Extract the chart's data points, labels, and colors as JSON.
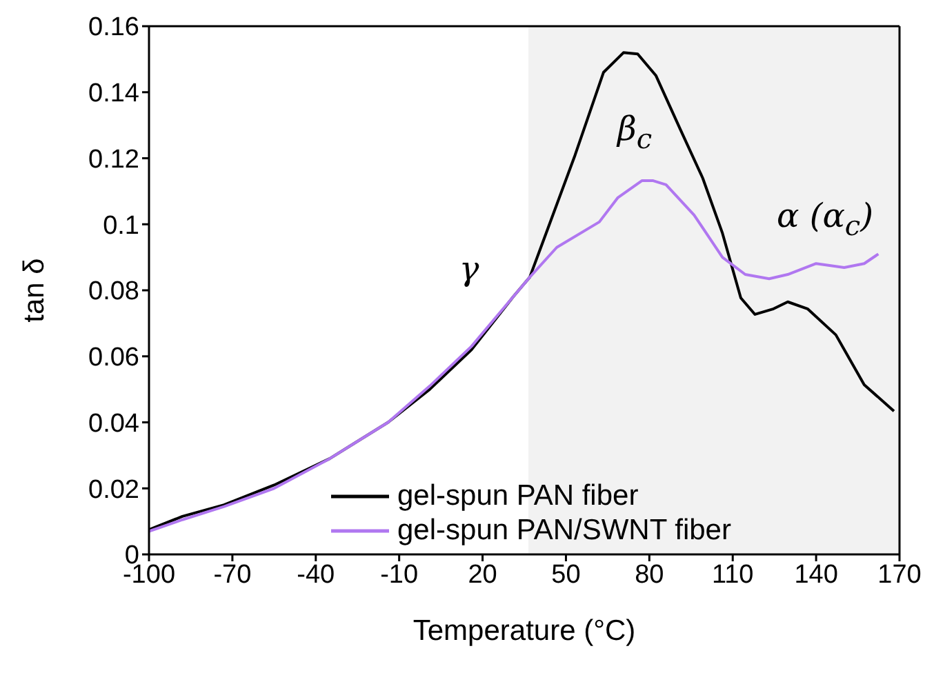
{
  "chart_data": {
    "type": "line",
    "xlabel": "Temperature (°C)",
    "ylabel": "tan δ",
    "xlim": [
      -100,
      170
    ],
    "xticks": [
      -100,
      -70,
      -40,
      -10,
      20,
      50,
      80,
      110,
      140,
      170
    ],
    "ylim": [
      0,
      0.16
    ],
    "yticks": [
      0,
      0.02,
      0.04,
      0.06,
      0.08,
      0.1,
      0.12,
      0.14,
      0.16
    ],
    "grid": false,
    "legend": "bottom",
    "marker": "none",
    "line_style": "solid",
    "bands": [
      {
        "axis": "x",
        "from": 36.5,
        "to": 170,
        "color": "#f2f2f2"
      }
    ],
    "annotations": [
      "γ",
      "β$_{c}$",
      "α (α$_{c}$)"
    ],
    "series": [
      {
        "name": "gel-spun PAN fiber",
        "color": "#000000",
        "x": [
          -100,
          -88,
          -73,
          -55,
          -35,
          -14,
          1,
          16,
          31,
          37,
          41.6,
          53.3,
          63.5,
          70.7,
          75.8,
          82.4,
          91,
          99.2,
          106.3,
          112.9,
          118,
          124.7,
          129.8,
          136.9,
          147.1,
          157.3,
          168
        ],
        "values": [
          0.0075,
          0.0115,
          0.015,
          0.021,
          0.029,
          0.04,
          0.05,
          0.062,
          0.078,
          0.084,
          0.0944,
          0.121,
          0.146,
          0.152,
          0.1516,
          0.145,
          0.129,
          0.114,
          0.0973,
          0.0777,
          0.0727,
          0.0744,
          0.0765,
          0.0744,
          0.0665,
          0.0514,
          0.0434
        ]
      },
      {
        "name": "gel-spun PAN/SWNT fiber",
        "color": "#b077f0",
        "x": [
          -100,
          -88,
          -73,
          -55,
          -35,
          -14,
          1,
          16,
          31,
          37,
          46.7,
          62,
          68.6,
          77.3,
          81.4,
          86,
          96.1,
          106.3,
          114.5,
          123.1,
          129.8,
          140,
          150.1,
          157.3,
          162.4
        ],
        "values": [
          0.007,
          0.0105,
          0.0145,
          0.02,
          0.029,
          0.04,
          0.051,
          0.063,
          0.078,
          0.084,
          0.093,
          0.1007,
          0.108,
          0.1132,
          0.1132,
          0.112,
          0.1028,
          0.09,
          0.0848,
          0.0835,
          0.0848,
          0.0881,
          0.0869,
          0.0881,
          0.091
        ]
      }
    ]
  }
}
